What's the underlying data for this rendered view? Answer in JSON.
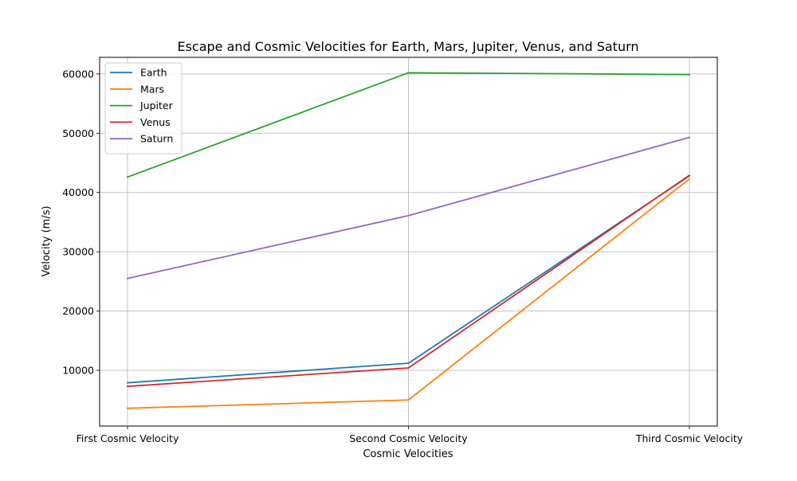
{
  "chart_data": {
    "type": "line",
    "title": "Escape and Cosmic Velocities for Earth, Mars, Jupiter, Venus, and Saturn",
    "xlabel": "Cosmic Velocities",
    "ylabel": "Velocity (m/s)",
    "categories": [
      "First Cosmic Velocity",
      "Second Cosmic Velocity",
      "Third Cosmic Velocity"
    ],
    "ylim": [
      600,
      62800
    ],
    "yticks": [
      10000,
      20000,
      30000,
      40000,
      50000,
      60000
    ],
    "ytick_labels": [
      "10000",
      "20000",
      "30000",
      "40000",
      "50000",
      "60000"
    ],
    "grid": true,
    "legend_position": "top-left",
    "series": [
      {
        "name": "Earth",
        "color": "#1f77b4",
        "values": [
          7900,
          11200,
          42800
        ]
      },
      {
        "name": "Mars",
        "color": "#ff7f0e",
        "values": [
          3600,
          5000,
          42300
        ]
      },
      {
        "name": "Jupiter",
        "color": "#2ca02c",
        "values": [
          42600,
          60200,
          59900
        ]
      },
      {
        "name": "Venus",
        "color": "#d62728",
        "values": [
          7300,
          10400,
          42900
        ]
      },
      {
        "name": "Saturn",
        "color": "#9467bd",
        "values": [
          25500,
          36100,
          49300
        ]
      }
    ]
  }
}
